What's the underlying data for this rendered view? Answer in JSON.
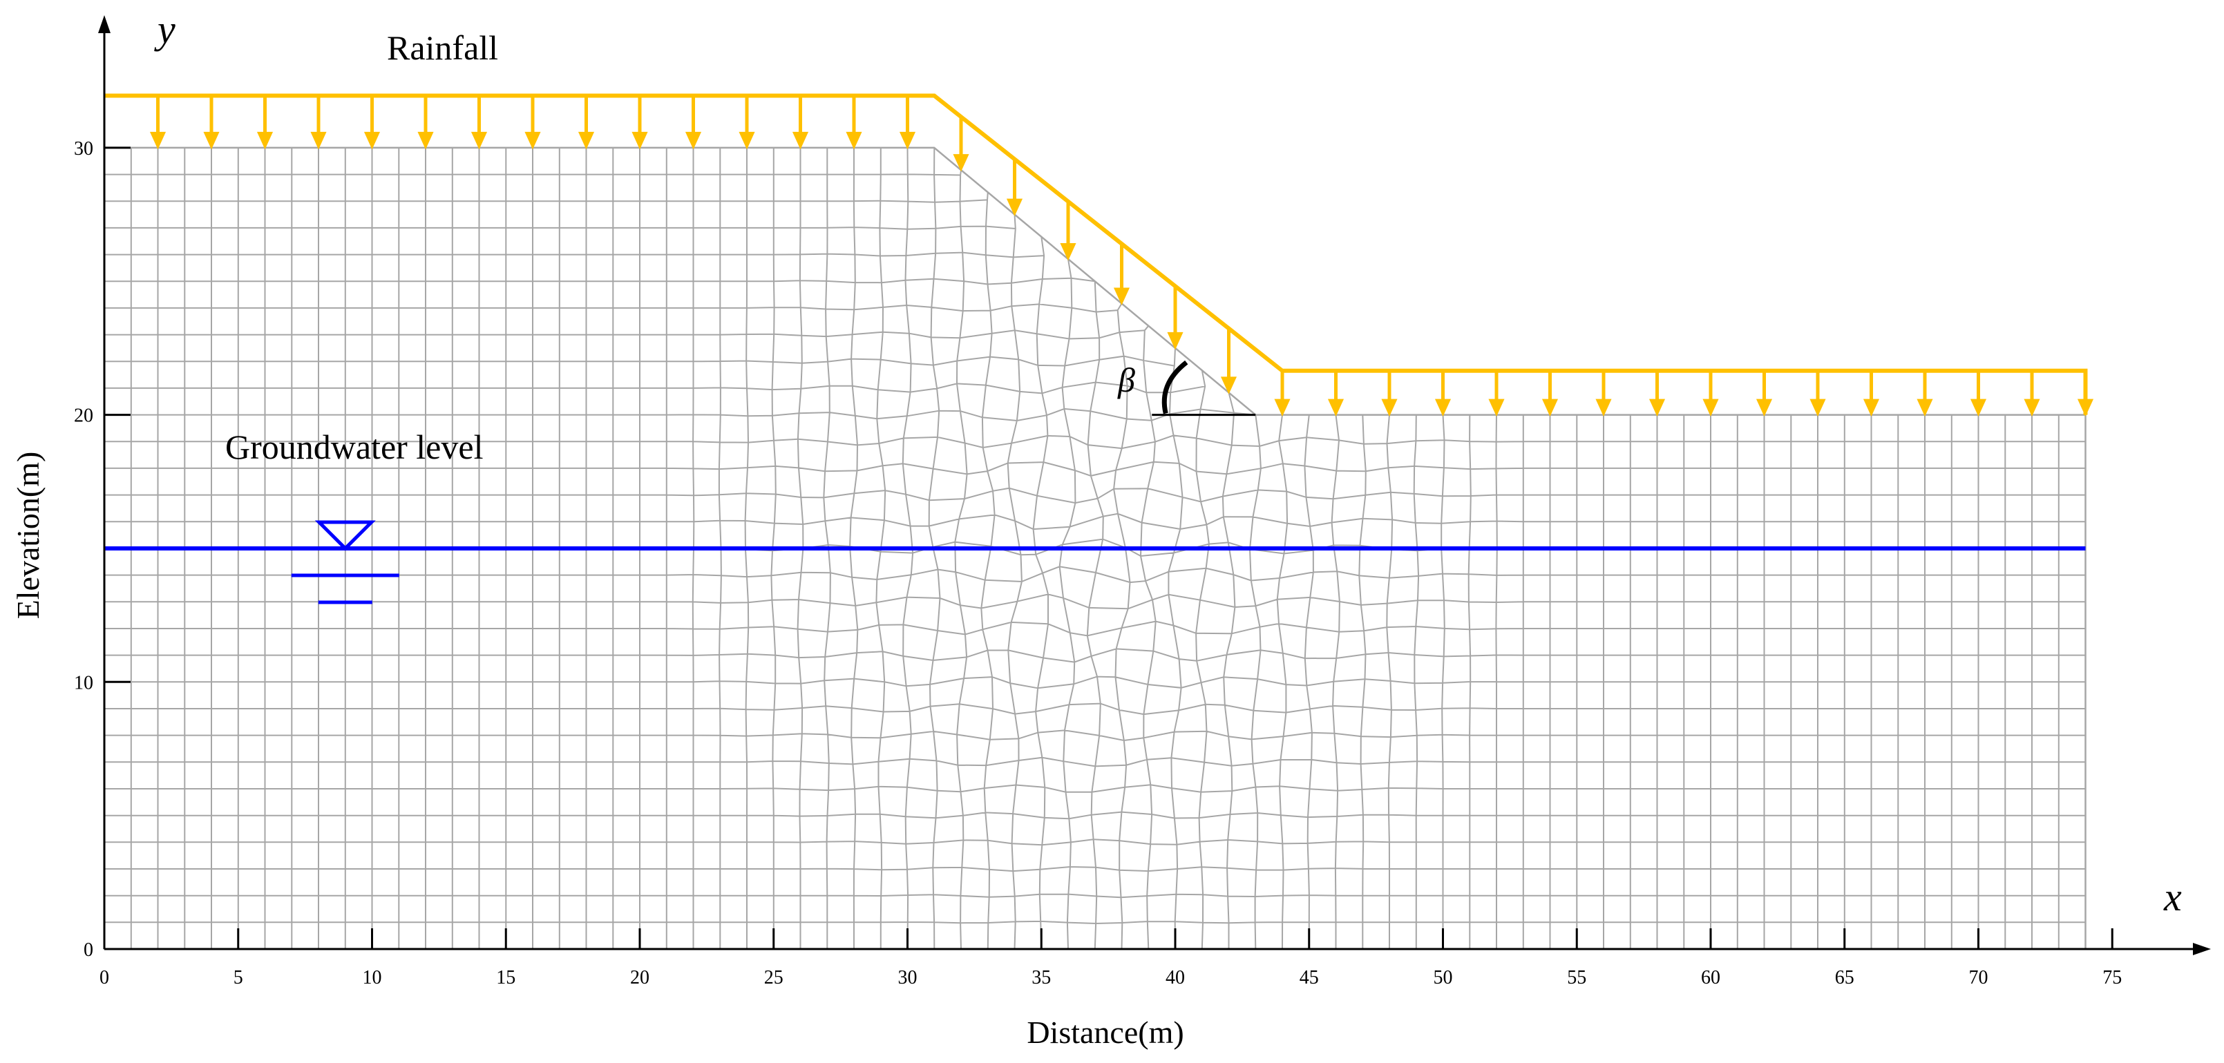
{
  "labels": {
    "rainfall": "Rainfall",
    "groundwater": "Groundwater level",
    "beta": "β",
    "y_axis_letter": "y",
    "x_axis_letter": "x",
    "xlabel": "Distance(m)",
    "ylabel": "Elevation(m)"
  },
  "axes": {
    "x_ticks": [
      "0",
      "5",
      "10",
      "15",
      "20",
      "25",
      "30",
      "35",
      "40",
      "45",
      "50",
      "55",
      "60",
      "65",
      "70",
      "75"
    ],
    "y_ticks": [
      "0",
      "10",
      "20",
      "30"
    ],
    "xlim": [
      0,
      78.5
    ],
    "ylim": [
      0,
      34.5
    ]
  },
  "geometry_data": {
    "domain_width_m": 74,
    "crest_elevation_m": 30,
    "crest_end_x_m": 31,
    "toe_x_m": 43,
    "toe_elevation_m": 20,
    "groundwater_elevation_m": 15,
    "mesh_spacing_m": 1,
    "rainfall_arrow_spacing_m": 2
  },
  "colors": {
    "rainfall": "#FFC000",
    "groundwater": "#0000FF",
    "mesh": "#A6A6A6",
    "axis": "#000000"
  }
}
